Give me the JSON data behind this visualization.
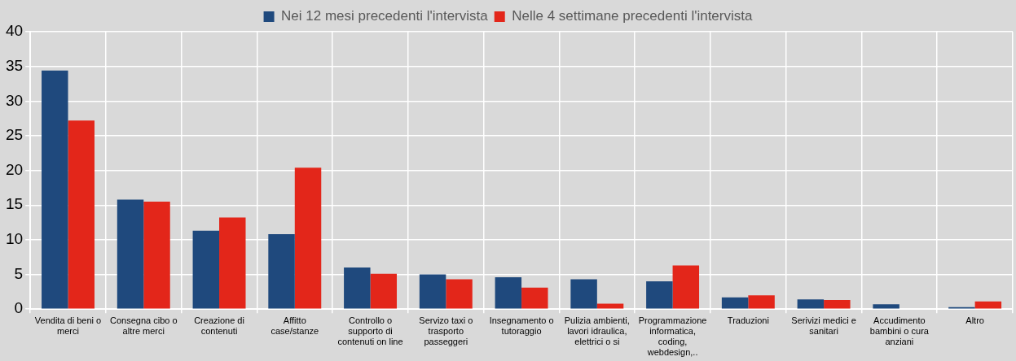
{
  "chart_data": {
    "type": "bar",
    "categories": [
      "Vendita di beni o merci",
      "Consegna cibo o altre merci",
      "Creazione di contenuti",
      "Affitto case/stanze",
      "Controllo o supporto di contenuti on line",
      "Servizo taxi o trasporto passeggeri",
      "Insegnamento o tutoraggio",
      "Pulizia ambienti, lavori idraulica, elettrici o si",
      "Programmazione informatica, coding, webdesign,..",
      "Traduzioni",
      "Serivizi medici e sanitari",
      "Accudimento bambini o cura anziani",
      "Altro"
    ],
    "series": [
      {
        "name": "Nei 12 mesi precedenti l'intervista",
        "color": "#1f497d",
        "values": [
          34.4,
          15.8,
          11.3,
          10.8,
          6.0,
          5.0,
          4.6,
          4.3,
          4.0,
          1.7,
          1.4,
          0.7,
          0.3
        ]
      },
      {
        "name": "Nelle 4 settimane precedenti l'intervista",
        "color": "#e3261a",
        "values": [
          27.2,
          15.5,
          13.2,
          20.4,
          5.1,
          4.3,
          3.1,
          0.8,
          6.3,
          2.0,
          1.3,
          0,
          1.1
        ]
      }
    ],
    "ylim": [
      0,
      40
    ],
    "yticks": [
      0,
      5,
      10,
      15,
      20,
      25,
      30,
      35,
      40
    ],
    "grid": true,
    "legend": "top"
  }
}
